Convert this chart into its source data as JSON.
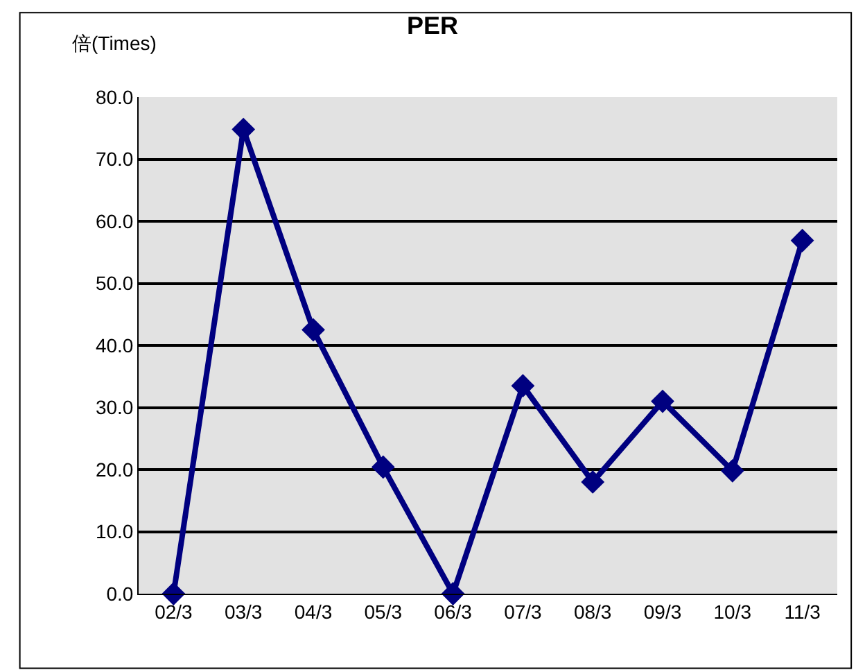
{
  "chart_data": {
    "type": "line",
    "title": "PER",
    "ylabel": "倍(Times)",
    "categories": [
      "02/3",
      "03/3",
      "04/3",
      "05/3",
      "06/3",
      "07/3",
      "08/3",
      "09/3",
      "10/3",
      "11/3"
    ],
    "series": [
      {
        "color": "#000080",
        "values": [
          0,
          74.8,
          42.5,
          20.4,
          0,
          33.5,
          18,
          31,
          19.8,
          56.9
        ]
      }
    ],
    "ylim": [
      0,
      80
    ],
    "yticks": [
      {
        "value": 0,
        "label": "0.0"
      },
      {
        "value": 10,
        "label": "10.0"
      },
      {
        "value": 20,
        "label": "20.0"
      },
      {
        "value": 30,
        "label": "30.0"
      },
      {
        "value": 40,
        "label": "40.0"
      },
      {
        "value": 50,
        "label": "50.0"
      },
      {
        "value": 60,
        "label": "60.0"
      },
      {
        "value": 70,
        "label": "70.0"
      },
      {
        "value": 80,
        "label": "80.0"
      }
    ],
    "grid": "y",
    "legend": false,
    "marker": "diamond",
    "line_style": "solid"
  }
}
